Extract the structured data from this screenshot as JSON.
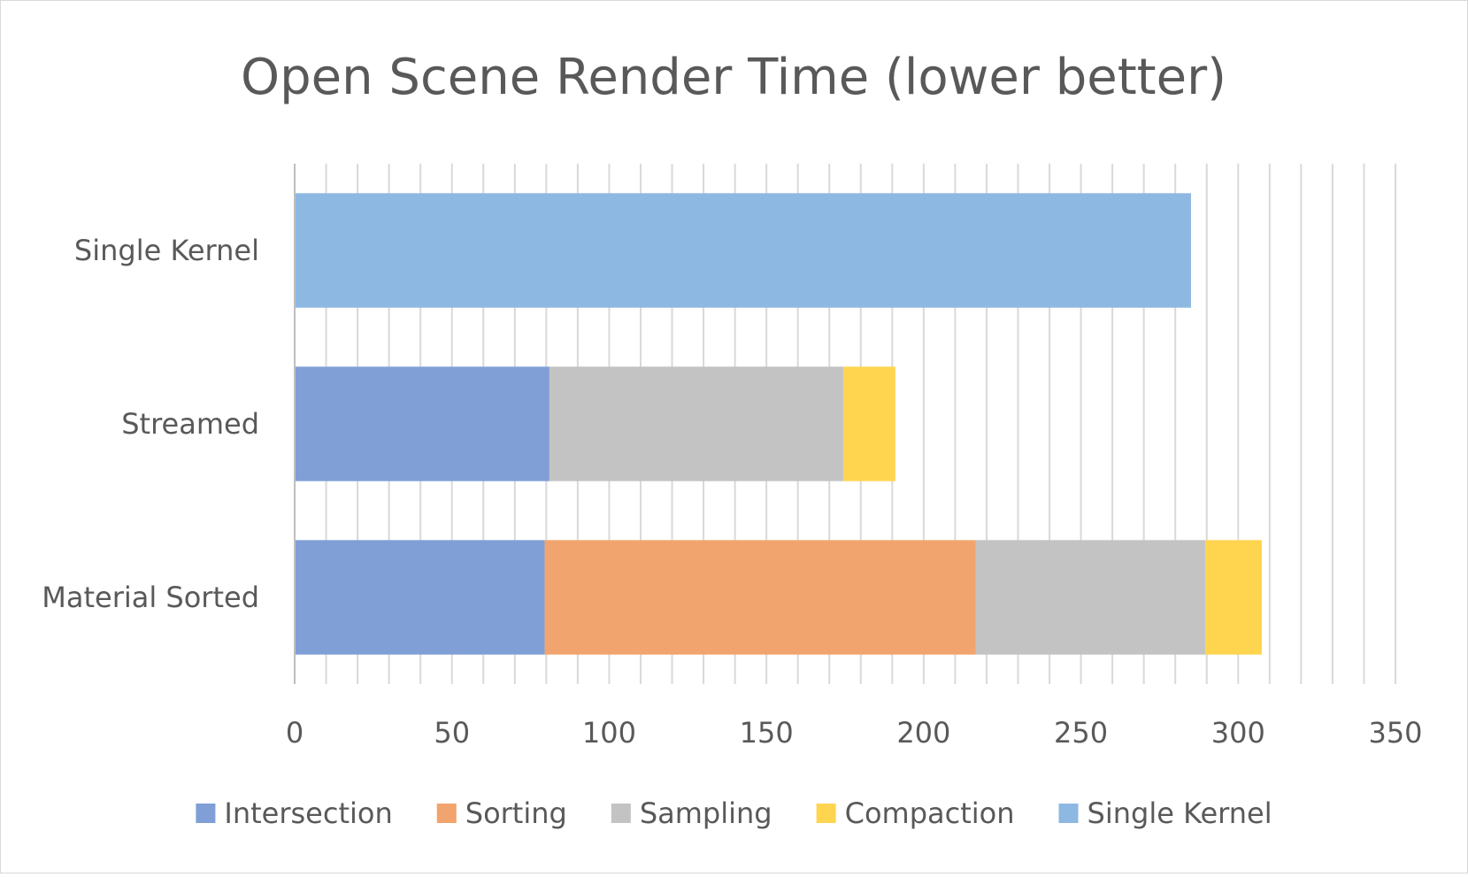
{
  "chart_data": {
    "type": "bar",
    "orientation": "horizontal",
    "stacked": true,
    "title": "Open Scene Render Time (lower better)",
    "categories": [
      "Single Kernel",
      "Streamed",
      "Material Sorted"
    ],
    "xlim": [
      0,
      350
    ],
    "x_ticks": [
      0,
      50,
      100,
      150,
      200,
      250,
      300,
      350
    ],
    "minor_gridline_step": 10,
    "grid": "vertical",
    "legend_position": "bottom",
    "series": [
      {
        "name": "Intersection",
        "color": "#7f9fd6",
        "values": [
          0,
          81,
          79.5
        ]
      },
      {
        "name": "Sorting",
        "color": "#f2a46e",
        "values": [
          0,
          0,
          137
        ]
      },
      {
        "name": "Sampling",
        "color": "#c3c3c3",
        "values": [
          0,
          93.5,
          73
        ]
      },
      {
        "name": "Compaction",
        "color": "#ffd54f",
        "values": [
          0,
          16.5,
          18
        ]
      },
      {
        "name": "Single Kernel",
        "color": "#8db8e2",
        "values": [
          285,
          0,
          0
        ]
      }
    ]
  }
}
